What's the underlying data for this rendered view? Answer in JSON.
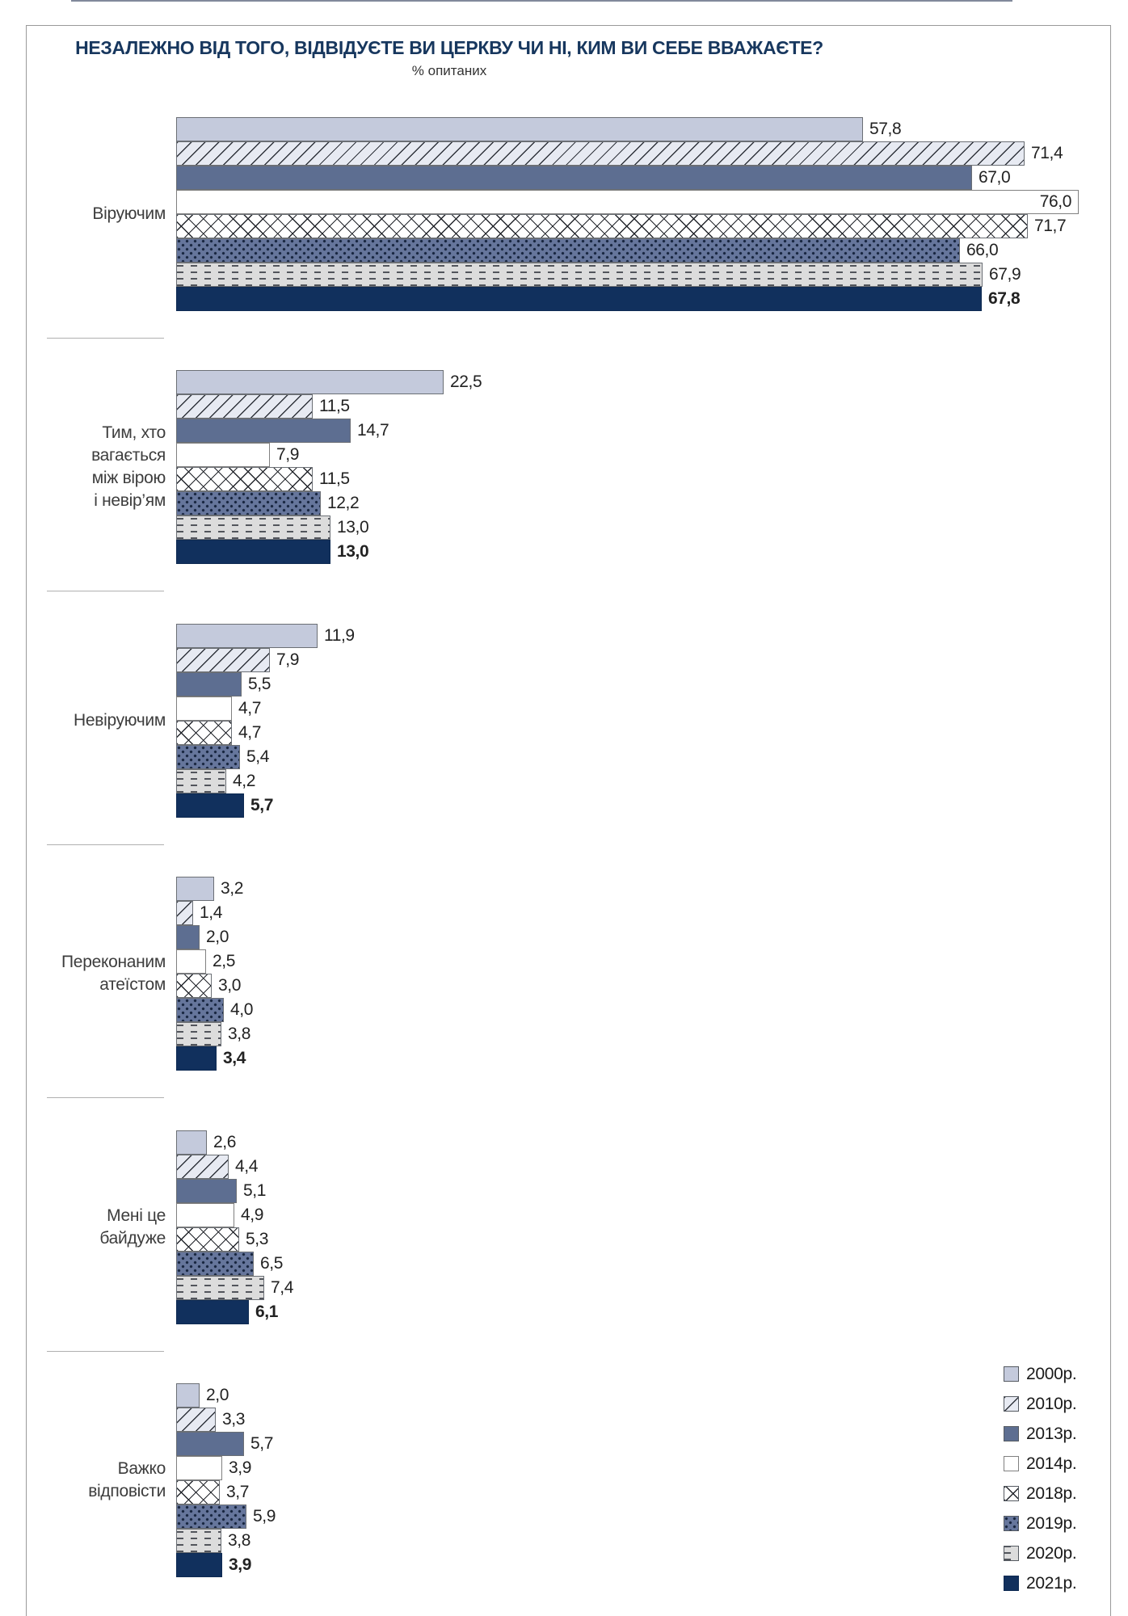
{
  "title": "НЕЗАЛЕЖНО ВІД ТОГО, ВІДВІДУЄТЕ ВИ ЦЕРКВУ ЧИ НІ, КИМ ВИ СЕБЕ ВВАЖАЄТЕ?",
  "subtitle": "% опитаних",
  "legend": {
    "position": "bottom-right",
    "items": [
      {
        "label": "2000р.",
        "pattern": "p2000",
        "color": "#c4cadc"
      },
      {
        "label": "2010р.",
        "pattern": "p2010",
        "color": "#e7eaf2"
      },
      {
        "label": "2013р.",
        "pattern": "p2013",
        "color": "#5d6e91"
      },
      {
        "label": "2014р.",
        "pattern": "p2014",
        "color": "#ffffff"
      },
      {
        "label": "2018р.",
        "pattern": "p2018",
        "color": "#ffffff"
      },
      {
        "label": "2019р.",
        "pattern": "p2019",
        "color": "#66769c"
      },
      {
        "label": "2020р.",
        "pattern": "p2020",
        "color": "#dcdcdc"
      },
      {
        "label": "2021р.",
        "pattern": "p2021",
        "color": "#11305d"
      }
    ]
  },
  "chart_data": {
    "type": "bar",
    "orientation": "horizontal",
    "title": "НЕЗАЛЕЖНО ВІД ТОГО, ВІДВІДУЄТЕ ВИ ЦЕРКВУ ЧИ НІ, КИМ ВИ СЕБЕ ВВАЖАЄТЕ?",
    "subtitle": "% опитаних",
    "xlabel": "",
    "ylabel": "",
    "xlim": [
      0,
      79
    ],
    "grid": false,
    "decimal_separator": ",",
    "value_labels": "outside-right, inside for 76,0",
    "bold_series": "2021р.",
    "categories": [
      "Віруючим",
      "Тим, хто вагається між вірою і невір’ям",
      "Невіруючим",
      "Переконаним атеїстом",
      "Мені це байдуже",
      "Важко відповісти"
    ],
    "categories_lines": [
      [
        "Віруючим"
      ],
      [
        "Тим, хто",
        "вагається",
        "між вірою",
        "і невір’ям"
      ],
      [
        "Невіруючим"
      ],
      [
        "Переконаним",
        "атеїстом"
      ],
      [
        "Мені це",
        "байдуже"
      ],
      [
        "Важко",
        "відповісти"
      ]
    ],
    "series": [
      {
        "name": "2000р.",
        "pattern": "p2000",
        "values": [
          57.8,
          22.5,
          11.9,
          3.2,
          2.6,
          2.0
        ]
      },
      {
        "name": "2010р.",
        "pattern": "p2010",
        "values": [
          71.4,
          11.5,
          7.9,
          1.4,
          4.4,
          3.3
        ]
      },
      {
        "name": "2013р.",
        "pattern": "p2013",
        "values": [
          67.0,
          14.7,
          5.5,
          2.0,
          5.1,
          5.7
        ]
      },
      {
        "name": "2014р.",
        "pattern": "p2014",
        "values": [
          76.0,
          7.9,
          4.7,
          2.5,
          4.9,
          3.9
        ]
      },
      {
        "name": "2018р.",
        "pattern": "p2018",
        "values": [
          71.7,
          11.5,
          4.7,
          3.0,
          5.3,
          3.7
        ]
      },
      {
        "name": "2019р.",
        "pattern": "p2019",
        "values": [
          66.0,
          12.2,
          5.4,
          4.0,
          6.5,
          5.9
        ]
      },
      {
        "name": "2020р.",
        "pattern": "p2020",
        "values": [
          67.9,
          13.0,
          4.2,
          3.8,
          7.4,
          3.8
        ]
      },
      {
        "name": "2021р.",
        "pattern": "p2021",
        "values": [
          67.8,
          13.0,
          5.7,
          3.4,
          6.1,
          3.9
        ]
      }
    ]
  },
  "colors": {
    "title_text": "#17375e",
    "category_text": "#3d3d3d",
    "value_text": "#222222",
    "frame_border": "#9a9a9a",
    "divider": "#b0b0b0",
    "navy_2021": "#11305d",
    "slate_2013": "#5d6e91",
    "slate_2019": "#66769c",
    "light_2000": "#c4cadc",
    "gray_2020": "#dcdcdc"
  }
}
